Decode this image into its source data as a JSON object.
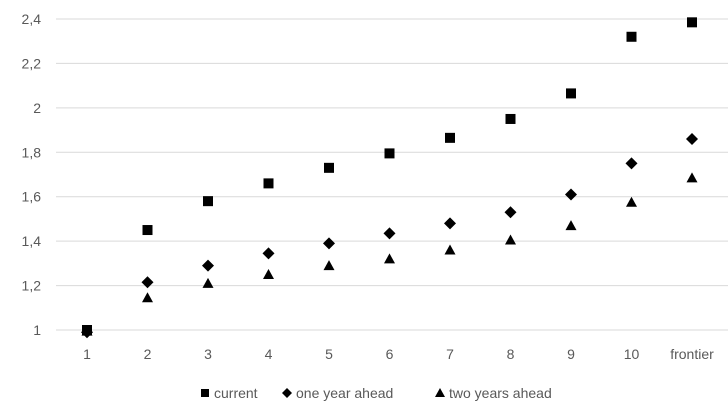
{
  "chart_data": {
    "type": "scatter",
    "categories": [
      "1",
      "2",
      "3",
      "4",
      "5",
      "6",
      "7",
      "8",
      "9",
      "10",
      "frontier"
    ],
    "series": [
      {
        "name": "current",
        "marker": "square",
        "values": [
          1.0,
          1.45,
          1.58,
          1.66,
          1.73,
          1.795,
          1.865,
          1.95,
          2.065,
          2.32,
          2.385
        ]
      },
      {
        "name": "one year ahead",
        "marker": "diamond",
        "values": [
          0.99,
          1.215,
          1.29,
          1.345,
          1.39,
          1.435,
          1.48,
          1.53,
          1.61,
          1.75,
          1.86
        ]
      },
      {
        "name": "two years ahead",
        "marker": "triangle",
        "values": [
          0.995,
          1.145,
          1.21,
          1.25,
          1.29,
          1.32,
          1.36,
          1.405,
          1.47,
          1.575,
          1.685
        ]
      }
    ],
    "y_ticks": [
      "1",
      "1,2",
      "1,4",
      "1,6",
      "1,8",
      "2",
      "2,2",
      "2,4"
    ],
    "ylim": [
      1,
      2.4
    ],
    "grid": "horizontal",
    "legend": "bottom",
    "colors": {
      "marks": "#000000",
      "grid": "#d9d9d9",
      "text": "#595959"
    }
  }
}
